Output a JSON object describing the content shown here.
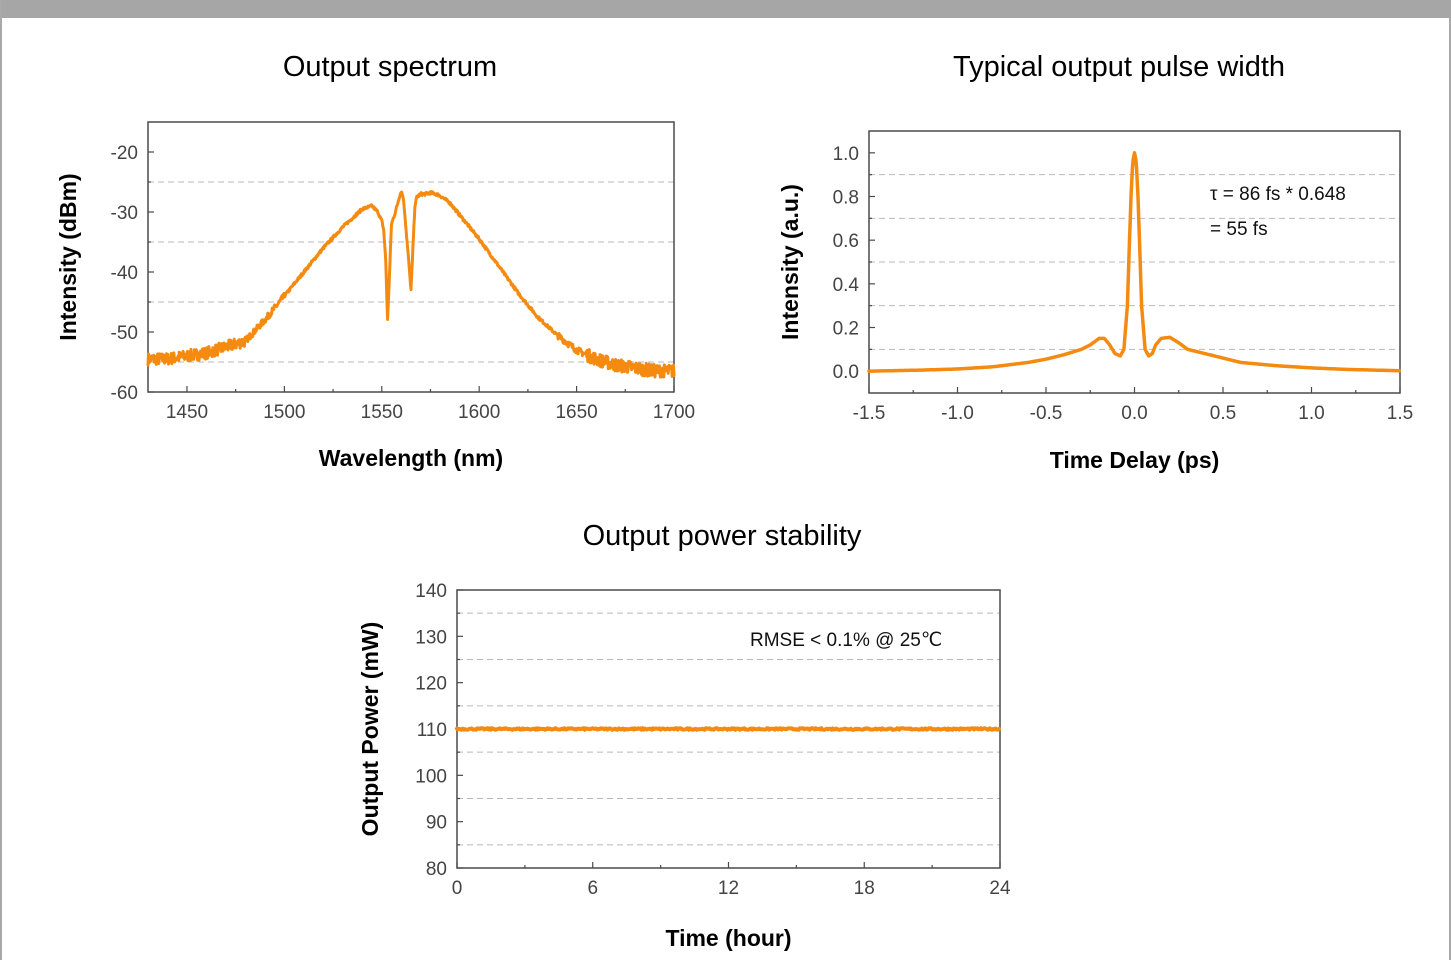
{
  "colors": {
    "series": "#f58a10",
    "frame": "#4a4a4a",
    "grid": "#b9b9b9",
    "border": "#a6a6a6"
  },
  "chart_data": [
    {
      "type": "line",
      "title": "Output spectrum",
      "xlabel": "Wavelength (nm)",
      "ylabel": "Intensity (dBm)",
      "xlim": [
        1430,
        1700
      ],
      "ylim": [
        -60,
        -15
      ],
      "xticks": [
        1450,
        1500,
        1550,
        1600,
        1650,
        1700
      ],
      "yticks": [
        -60,
        -50,
        -40,
        -30,
        -20
      ],
      "grid": {
        "style": "dashed",
        "y": [
          -55,
          -45,
          -35,
          -25
        ]
      },
      "noise_regions": [
        1430,
        1480,
        1655,
        1700
      ],
      "series": [
        {
          "x": [
            1430,
            1440,
            1450,
            1460,
            1470,
            1480,
            1490,
            1500,
            1510,
            1520,
            1530,
            1540,
            1545,
            1548,
            1550,
            1551,
            1552,
            1553,
            1554,
            1555,
            1557,
            1559,
            1560,
            1561,
            1562,
            1563,
            1564,
            1565,
            1566,
            1567,
            1568,
            1570,
            1572,
            1575,
            1578,
            1580,
            1585,
            1590,
            1600,
            1610,
            1620,
            1630,
            1640,
            1650,
            1660,
            1670,
            1680,
            1690,
            1700
          ],
          "values": [
            -54.5,
            -54.5,
            -54,
            -53.5,
            -52.5,
            -51.5,
            -48,
            -44,
            -40,
            -36,
            -32.5,
            -29.5,
            -29,
            -30,
            -31.5,
            -33,
            -38,
            -48,
            -40,
            -32,
            -30,
            -27.5,
            -26.5,
            -27.5,
            -31,
            -35,
            -39,
            -43,
            -36,
            -29,
            -27.5,
            -27,
            -27,
            -26.8,
            -27,
            -27.3,
            -28.5,
            -30.5,
            -34.5,
            -39,
            -43.5,
            -47.5,
            -50.5,
            -53,
            -54.5,
            -55.5,
            -56,
            -56.5,
            -56.5
          ]
        }
      ]
    },
    {
      "type": "line",
      "title": "Typical output pulse width",
      "xlabel": "Time Delay (ps)",
      "ylabel": "Intensity (a.u.)",
      "xlim": [
        -1.5,
        1.5
      ],
      "ylim": [
        -0.1,
        1.1
      ],
      "xticks": [
        "-1.5",
        "-1.0",
        "-0.5",
        "0.0",
        "0.5",
        "1.0",
        "1.5"
      ],
      "yticks": [
        "0.0",
        "0.2",
        "0.4",
        "0.6",
        "0.8",
        "1.0"
      ],
      "grid": {
        "style": "dashed",
        "y": [
          0.1,
          0.3,
          0.5,
          0.7,
          0.9
        ]
      },
      "annotations": [
        "τ  = 86 fs * 0.648",
        " = 55 fs"
      ],
      "series": [
        {
          "x": [
            -1.5,
            -1.2,
            -1.0,
            -0.8,
            -0.6,
            -0.5,
            -0.4,
            -0.3,
            -0.25,
            -0.2,
            -0.17,
            -0.14,
            -0.11,
            -0.08,
            -0.06,
            -0.04,
            -0.03,
            -0.02,
            -0.01,
            0.0,
            0.01,
            0.02,
            0.03,
            0.04,
            0.06,
            0.08,
            0.1,
            0.12,
            0.15,
            0.2,
            0.25,
            0.3,
            0.4,
            0.5,
            0.6,
            0.8,
            1.0,
            1.2,
            1.5
          ],
          "values": [
            0.0,
            0.005,
            0.01,
            0.02,
            0.04,
            0.055,
            0.075,
            0.1,
            0.12,
            0.15,
            0.15,
            0.12,
            0.08,
            0.07,
            0.1,
            0.3,
            0.55,
            0.8,
            0.96,
            1.0,
            0.96,
            0.8,
            0.55,
            0.3,
            0.1,
            0.07,
            0.08,
            0.12,
            0.15,
            0.155,
            0.13,
            0.1,
            0.08,
            0.06,
            0.04,
            0.025,
            0.015,
            0.008,
            0.002
          ]
        }
      ]
    },
    {
      "type": "line",
      "title": "Output power stability",
      "xlabel": "Time (hour)",
      "ylabel": "Output Power (mW)",
      "xlim": [
        0,
        24
      ],
      "ylim": [
        80,
        140
      ],
      "xticks": [
        0,
        6,
        12,
        18,
        24
      ],
      "yticks": [
        80,
        90,
        100,
        110,
        120,
        130,
        140
      ],
      "grid": {
        "style": "dashed",
        "y": [
          85,
          95,
          105,
          115,
          125,
          135
        ]
      },
      "annotations": [
        "RMSE < 0.1% @ 25℃"
      ],
      "series": [
        {
          "x": [
            0,
            2,
            4,
            6,
            8,
            10,
            12,
            14,
            16,
            18,
            20,
            22,
            24
          ],
          "values": [
            110,
            110,
            110,
            110,
            110,
            110,
            110,
            110,
            110,
            110,
            110,
            110,
            110
          ]
        }
      ]
    }
  ]
}
